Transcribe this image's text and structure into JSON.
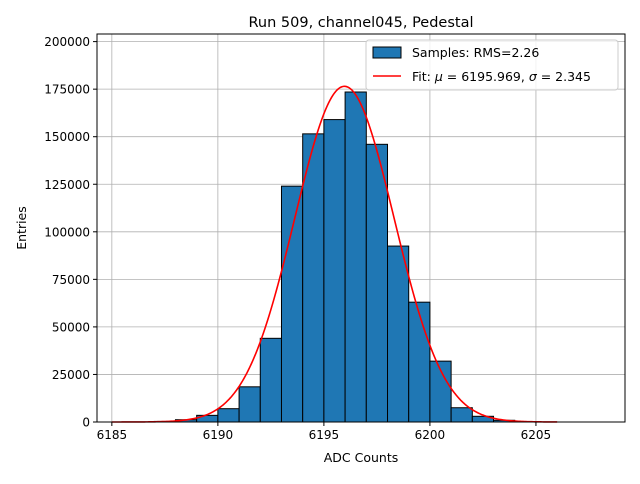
{
  "chart_data": {
    "type": "bar",
    "title": "Run 509, channel045, Pedestal",
    "xlabel": "ADC Counts",
    "ylabel": "Entries",
    "xlim": [
      6184.3,
      6209.2
    ],
    "ylim": [
      0,
      204000
    ],
    "xticks": [
      6185,
      6190,
      6195,
      6200,
      6205
    ],
    "yticks": [
      0,
      25000,
      50000,
      75000,
      100000,
      125000,
      150000,
      175000,
      200000
    ],
    "xtick_labels": [
      "6185",
      "6190",
      "6195",
      "6200",
      "6205"
    ],
    "ytick_labels": [
      "0",
      "25000",
      "50000",
      "75000",
      "100000",
      "125000",
      "150000",
      "175000",
      "200000"
    ],
    "grid": true,
    "legend_position": "top-right",
    "histogram": {
      "name": "Samples: RMS=2.26",
      "color": "#1f77b4",
      "edge_color": "#000000",
      "bins": [
        {
          "x0": 6187,
          "x1": 6188,
          "value": 300
        },
        {
          "x0": 6188,
          "x1": 6189,
          "value": 1200
        },
        {
          "x0": 6189,
          "x1": 6190,
          "value": 3500
        },
        {
          "x0": 6190,
          "x1": 6191,
          "value": 7000
        },
        {
          "x0": 6191,
          "x1": 6192,
          "value": 18500
        },
        {
          "x0": 6192,
          "x1": 6193,
          "value": 44000
        },
        {
          "x0": 6193,
          "x1": 6194,
          "value": 124000
        },
        {
          "x0": 6194,
          "x1": 6195,
          "value": 151500
        },
        {
          "x0": 6195,
          "x1": 6196,
          "value": 159000
        },
        {
          "x0": 6196,
          "x1": 6197,
          "value": 173500
        },
        {
          "x0": 6197,
          "x1": 6198,
          "value": 146000
        },
        {
          "x0": 6198,
          "x1": 6199,
          "value": 92500
        },
        {
          "x0": 6199,
          "x1": 6200,
          "value": 63000
        },
        {
          "x0": 6200,
          "x1": 6201,
          "value": 32000
        },
        {
          "x0": 6201,
          "x1": 6202,
          "value": 7500
        },
        {
          "x0": 6202,
          "x1": 6203,
          "value": 3000
        },
        {
          "x0": 6203,
          "x1": 6204,
          "value": 900
        },
        {
          "x0": 6204,
          "x1": 6205,
          "value": 250
        }
      ]
    },
    "fit": {
      "name_prefix": "Fit: ",
      "mu_symbol": "μ",
      "mu_text": " = 6195.969, ",
      "sigma_symbol": "σ",
      "sigma_text": " = 2.345",
      "color": "#ff0000",
      "mu": 6195.969,
      "sigma": 2.345,
      "amplitude": 176500,
      "x_range": [
        6185,
        6206
      ]
    }
  }
}
